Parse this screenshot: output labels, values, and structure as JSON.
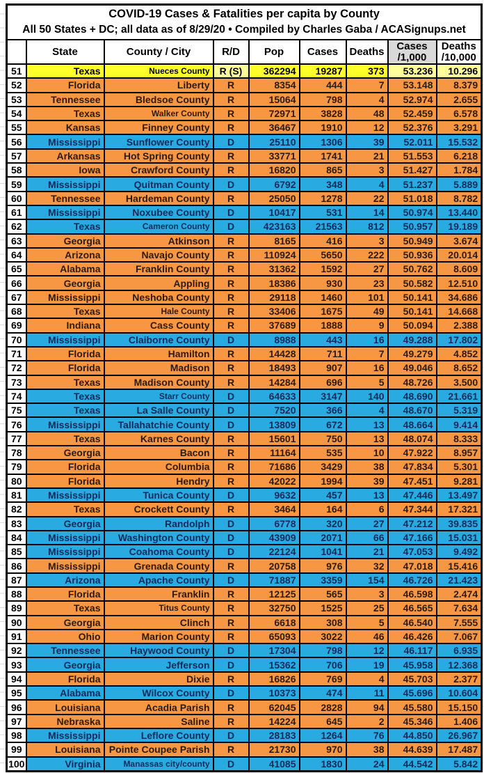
{
  "title": "COVID-19 Cases & Fatalities per capita by County",
  "subtitle": "All 50 States + DC; all data as of 8/29/20  • Compiled by Charles Gaba / ACASignups.net",
  "colors": {
    "republican_row": "#F79643",
    "democrat_row": "#29ABE2",
    "highlight_row": "#FFFF2B",
    "highlight_pale": "#FFFF99",
    "header_gray": "#D9D9D9",
    "grid_border": "#000000",
    "text_on_republican": "#2E1A05",
    "text_on_democrat": "#0D2B5B",
    "text_on_highlight": "#000000"
  },
  "chart_data": {
    "type": "table",
    "columns": [
      "",
      "State",
      "County / City",
      "R/D",
      "Pop",
      "Cases",
      "Deaths",
      "Cases\n/1,000",
      "Deaths\n/10,000"
    ],
    "legend": {
      "R": "Republican (orange)",
      "D": "Democrat (blue)",
      "H": "highlighted row (yellow)"
    },
    "rows": [
      [
        51,
        "Texas",
        "Nueces County",
        "R (S)",
        "362294",
        "19287",
        "373",
        "53.236",
        "10.296",
        "H",
        1
      ],
      [
        52,
        "Florida",
        "Liberty",
        "R",
        "8354",
        "444",
        "7",
        "53.148",
        "8.379",
        "R",
        0
      ],
      [
        53,
        "Tennessee",
        "Bledsoe County",
        "R",
        "15064",
        "798",
        "4",
        "52.974",
        "2.655",
        "R",
        0
      ],
      [
        54,
        "Texas",
        "Walker County",
        "R",
        "72971",
        "3828",
        "48",
        "52.459",
        "6.578",
        "R",
        1
      ],
      [
        55,
        "Kansas",
        "Finney County",
        "R",
        "36467",
        "1910",
        "12",
        "52.376",
        "3.291",
        "R",
        0
      ],
      [
        56,
        "Mississippi",
        "Sunflower County",
        "D",
        "25110",
        "1306",
        "39",
        "52.011",
        "15.532",
        "D",
        0
      ],
      [
        57,
        "Arkansas",
        "Hot Spring County",
        "R",
        "33771",
        "1741",
        "21",
        "51.553",
        "6.218",
        "R",
        0
      ],
      [
        58,
        "Iowa",
        "Crawford County",
        "R",
        "16820",
        "865",
        "3",
        "51.427",
        "1.784",
        "R",
        0
      ],
      [
        59,
        "Mississippi",
        "Quitman County",
        "D",
        "6792",
        "348",
        "4",
        "51.237",
        "5.889",
        "D",
        0
      ],
      [
        60,
        "Tennessee",
        "Hardeman County",
        "R",
        "25050",
        "1278",
        "22",
        "51.018",
        "8.782",
        "R",
        0
      ],
      [
        61,
        "Mississippi",
        "Noxubee County",
        "D",
        "10417",
        "531",
        "14",
        "50.974",
        "13.440",
        "D",
        0
      ],
      [
        62,
        "Texas",
        "Cameron County",
        "D",
        "423163",
        "21563",
        "812",
        "50.957",
        "19.189",
        "D",
        1
      ],
      [
        63,
        "Georgia",
        "Atkinson",
        "R",
        "8165",
        "416",
        "3",
        "50.949",
        "3.674",
        "R",
        0
      ],
      [
        64,
        "Arizona",
        "Navajo County",
        "R",
        "110924",
        "5650",
        "222",
        "50.936",
        "20.014",
        "R",
        0
      ],
      [
        65,
        "Alabama",
        "Franklin County",
        "R",
        "31362",
        "1592",
        "27",
        "50.762",
        "8.609",
        "R",
        0
      ],
      [
        66,
        "Georgia",
        "Appling",
        "R",
        "18386",
        "930",
        "23",
        "50.582",
        "12.510",
        "R",
        0
      ],
      [
        67,
        "Mississippi",
        "Neshoba County",
        "R",
        "29118",
        "1460",
        "101",
        "50.141",
        "34.686",
        "R",
        0
      ],
      [
        68,
        "Texas",
        "Hale County",
        "R",
        "33406",
        "1675",
        "49",
        "50.141",
        "14.668",
        "R",
        1
      ],
      [
        69,
        "Indiana",
        "Cass County",
        "R",
        "37689",
        "1888",
        "9",
        "50.094",
        "2.388",
        "R",
        0
      ],
      [
        70,
        "Mississippi",
        "Claiborne County",
        "D",
        "8988",
        "443",
        "16",
        "49.288",
        "17.802",
        "D",
        0
      ],
      [
        71,
        "Florida",
        "Hamilton",
        "R",
        "14428",
        "711",
        "7",
        "49.279",
        "4.852",
        "R",
        0
      ],
      [
        72,
        "Florida",
        "Madison",
        "R",
        "18493",
        "907",
        "16",
        "49.046",
        "8.652",
        "R",
        0
      ],
      [
        73,
        "Texas",
        "Madison County",
        "R",
        "14284",
        "696",
        "5",
        "48.726",
        "3.500",
        "R",
        0
      ],
      [
        74,
        "Texas",
        "Starr County",
        "D",
        "64633",
        "3147",
        "140",
        "48.690",
        "21.661",
        "D",
        1
      ],
      [
        75,
        "Texas",
        "La Salle County",
        "D",
        "7520",
        "366",
        "4",
        "48.670",
        "5.319",
        "D",
        0
      ],
      [
        76,
        "Mississippi",
        "Tallahatchie County",
        "D",
        "13809",
        "672",
        "13",
        "48.664",
        "9.414",
        "D",
        0
      ],
      [
        77,
        "Texas",
        "Karnes County",
        "R",
        "15601",
        "750",
        "13",
        "48.074",
        "8.333",
        "R",
        0
      ],
      [
        78,
        "Georgia",
        "Bacon",
        "R",
        "11164",
        "535",
        "10",
        "47.922",
        "8.957",
        "R",
        0
      ],
      [
        79,
        "Florida",
        "Columbia",
        "R",
        "71686",
        "3429",
        "38",
        "47.834",
        "5.301",
        "R",
        0
      ],
      [
        80,
        "Florida",
        "Hendry",
        "R",
        "42022",
        "1994",
        "39",
        "47.451",
        "9.281",
        "R",
        0
      ],
      [
        81,
        "Mississippi",
        "Tunica County",
        "D",
        "9632",
        "457",
        "13",
        "47.446",
        "13.497",
        "D",
        0
      ],
      [
        82,
        "Texas",
        "Crockett County",
        "R",
        "3464",
        "164",
        "6",
        "47.344",
        "17.321",
        "R",
        0
      ],
      [
        83,
        "Georgia",
        "Randolph",
        "D",
        "6778",
        "320",
        "27",
        "47.212",
        "39.835",
        "D",
        0
      ],
      [
        84,
        "Mississippi",
        "Washington County",
        "D",
        "43909",
        "2071",
        "66",
        "47.166",
        "15.031",
        "D",
        0
      ],
      [
        85,
        "Mississippi",
        "Coahoma County",
        "D",
        "22124",
        "1041",
        "21",
        "47.053",
        "9.492",
        "D",
        0
      ],
      [
        86,
        "Mississippi",
        "Grenada County",
        "R",
        "20758",
        "976",
        "32",
        "47.018",
        "15.416",
        "R",
        0
      ],
      [
        87,
        "Arizona",
        "Apache County",
        "D",
        "71887",
        "3359",
        "154",
        "46.726",
        "21.423",
        "D",
        0
      ],
      [
        88,
        "Florida",
        "Franklin",
        "R",
        "12125",
        "565",
        "3",
        "46.598",
        "2.474",
        "R",
        0
      ],
      [
        89,
        "Texas",
        "Titus County",
        "R",
        "32750",
        "1525",
        "25",
        "46.565",
        "7.634",
        "R",
        1
      ],
      [
        90,
        "Georgia",
        "Clinch",
        "R",
        "6618",
        "308",
        "5",
        "46.540",
        "7.555",
        "R",
        0
      ],
      [
        91,
        "Ohio",
        "Marion County",
        "R",
        "65093",
        "3022",
        "46",
        "46.426",
        "7.067",
        "R",
        0
      ],
      [
        92,
        "Tennessee",
        "Haywood County",
        "D",
        "17304",
        "798",
        "12",
        "46.117",
        "6.935",
        "D",
        0
      ],
      [
        93,
        "Georgia",
        "Jefferson",
        "D",
        "15362",
        "706",
        "19",
        "45.958",
        "12.368",
        "D",
        0
      ],
      [
        94,
        "Florida",
        "Dixie",
        "R",
        "16826",
        "769",
        "4",
        "45.703",
        "2.377",
        "R",
        0
      ],
      [
        95,
        "Alabama",
        "Wilcox County",
        "D",
        "10373",
        "474",
        "11",
        "45.696",
        "10.604",
        "D",
        0
      ],
      [
        96,
        "Louisiana",
        "Acadia Parish",
        "R",
        "62045",
        "2828",
        "94",
        "45.580",
        "15.150",
        "R",
        0
      ],
      [
        97,
        "Nebraska",
        "Saline",
        "R",
        "14224",
        "645",
        "2",
        "45.346",
        "1.406",
        "R",
        0
      ],
      [
        98,
        "Mississippi",
        "Leflore County",
        "D",
        "28183",
        "1264",
        "76",
        "44.850",
        "26.967",
        "D",
        0
      ],
      [
        99,
        "Louisiana",
        "Pointe Coupee Parish",
        "R",
        "21730",
        "970",
        "38",
        "44.639",
        "17.487",
        "R",
        0
      ],
      [
        100,
        "Virginia",
        "Manassas city/county",
        "D",
        "41085",
        "1830",
        "24",
        "44.542",
        "5.842",
        "D",
        1
      ]
    ]
  }
}
